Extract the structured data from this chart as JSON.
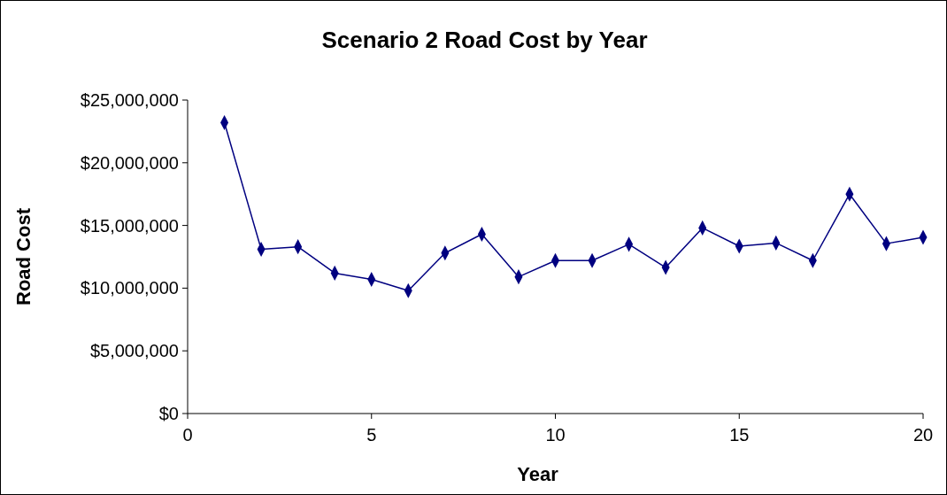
{
  "chart_data": {
    "type": "line",
    "title": "Scenario 2 Road Cost by Year",
    "xlabel": "Year",
    "ylabel": "Road Cost",
    "x": [
      1,
      2,
      3,
      4,
      5,
      6,
      7,
      8,
      9,
      10,
      11,
      12,
      13,
      14,
      15,
      16,
      17,
      18,
      19,
      20
    ],
    "series": [
      {
        "color": "#000080",
        "values": [
          23200000,
          13100000,
          13300000,
          11200000,
          10700000,
          9800000,
          12800000,
          14300000,
          10900000,
          12200000,
          12200000,
          13500000,
          11650000,
          14800000,
          13350000,
          13600000,
          12200000,
          17500000,
          13550000,
          14050000
        ]
      }
    ],
    "xlim": [
      0,
      20
    ],
    "xticks": [
      0,
      5,
      10,
      15,
      20
    ],
    "ylim": [
      0,
      25000000
    ],
    "yticks": [
      {
        "value": 0,
        "label": "$0"
      },
      {
        "value": 5000000,
        "label": "$5,000,000"
      },
      {
        "value": 10000000,
        "label": "$10,000,000"
      },
      {
        "value": 15000000,
        "label": "$15,000,000"
      },
      {
        "value": 20000000,
        "label": "$20,000,000"
      },
      {
        "value": 25000000,
        "label": "$25,000,000"
      }
    ],
    "grid": false,
    "marker": "diamond",
    "line_style": "solid"
  }
}
